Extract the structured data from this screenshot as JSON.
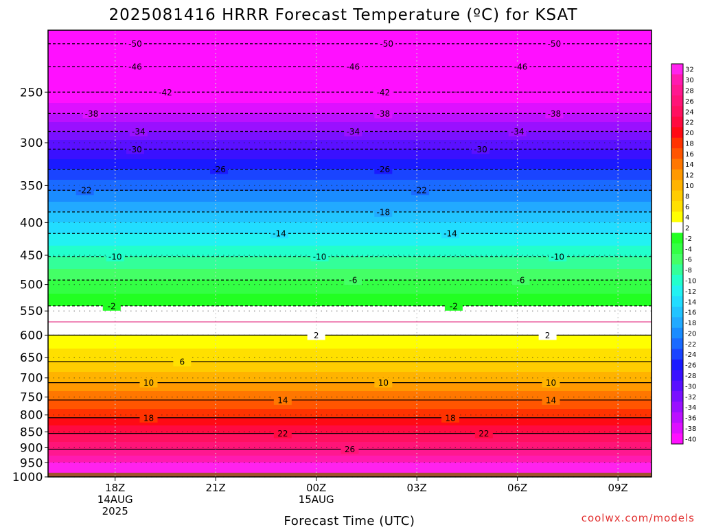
{
  "chart_data": {
    "type": "heatmap",
    "title": "2025081416 HRRR Forecast Temperature (ºC) for KSAT",
    "xlabel": "Forecast Time (UTC)",
    "ylabel": "",
    "credit": "coolwx.com/models",
    "x_ticks": [
      {
        "hour": 18,
        "lines": [
          "18Z",
          "14AUG",
          "2025"
        ]
      },
      {
        "hour": 21,
        "lines": [
          "21Z"
        ]
      },
      {
        "hour": 24,
        "lines": [
          "00Z",
          "15AUG"
        ]
      },
      {
        "hour": 27,
        "lines": [
          "03Z"
        ]
      },
      {
        "hour": 30,
        "lines": [
          "06Z"
        ]
      },
      {
        "hour": 33,
        "lines": [
          "09Z"
        ]
      }
    ],
    "xlim": [
      16,
      34
    ],
    "y_ticks": [
      250,
      300,
      350,
      400,
      450,
      500,
      550,
      600,
      650,
      700,
      750,
      800,
      850,
      900,
      950,
      1000
    ],
    "ylim": [
      200,
      1000
    ],
    "y_scale": "log-pressure",
    "ground_level": 985,
    "grid": true,
    "colorbar": {
      "levels": [
        32,
        30,
        28,
        26,
        24,
        22,
        20,
        18,
        16,
        14,
        12,
        10,
        8,
        6,
        4,
        2,
        -2,
        -4,
        -6,
        -8,
        -10,
        -12,
        -14,
        -16,
        -18,
        -20,
        -22,
        -24,
        -26,
        -28,
        -30,
        -32,
        -34,
        -36,
        -38,
        -40
      ],
      "colors": [
        "#ff22ee",
        "#ff1ab0",
        "#ff1890",
        "#ff1478",
        "#ff1060",
        "#ff0a40",
        "#ff0a14",
        "#ff3300",
        "#ff5500",
        "#ff7700",
        "#ff9900",
        "#ffb300",
        "#ffcc00",
        "#ffe000",
        "#ffff00",
        "#ffffff",
        "#22ff22",
        "#33ff44",
        "#44ff66",
        "#33ff99",
        "#22ffcc",
        "#22f2f2",
        "#22ddff",
        "#22c4ff",
        "#22aaff",
        "#1a8cff",
        "#1a6aff",
        "#1a44ff",
        "#1a1aff",
        "#3a10ff",
        "#5a10ff",
        "#7a10ff",
        "#9a10ff",
        "#bb10ff",
        "#dd10ff",
        "#ff10ff"
      ]
    },
    "contours": [
      {
        "value": -50,
        "pressure": 210,
        "dashed": true,
        "labels": [
          {
            "hour": 18.6
          },
          {
            "hour": 26.1
          },
          {
            "hour": 31.1
          }
        ]
      },
      {
        "value": -46,
        "pressure": 228,
        "dashed": true,
        "labels": [
          {
            "hour": 18.6
          },
          {
            "hour": 25.1
          },
          {
            "hour": 30.1
          }
        ]
      },
      {
        "value": -42,
        "pressure": 250,
        "dashed": true,
        "labels": [
          {
            "hour": 19.5
          },
          {
            "hour": 26.0
          }
        ]
      },
      {
        "value": -38,
        "pressure": 270,
        "dashed": true,
        "labels": [
          {
            "hour": 17.3
          },
          {
            "hour": 26.0
          },
          {
            "hour": 31.1
          }
        ]
      },
      {
        "value": -34,
        "pressure": 288,
        "dashed": true,
        "labels": [
          {
            "hour": 18.7
          },
          {
            "hour": 25.1
          },
          {
            "hour": 30.0
          }
        ]
      },
      {
        "value": -30,
        "pressure": 307,
        "dashed": true,
        "labels": [
          {
            "hour": 18.6
          },
          {
            "hour": 28.9
          }
        ]
      },
      {
        "value": -26,
        "pressure": 330,
        "dashed": true,
        "labels": [
          {
            "hour": 21.1
          },
          {
            "hour": 26.0
          }
        ]
      },
      {
        "value": -22,
        "pressure": 356,
        "dashed": true,
        "labels": [
          {
            "hour": 17.1
          },
          {
            "hour": 27.1
          }
        ]
      },
      {
        "value": -18,
        "pressure": 385,
        "dashed": true,
        "labels": [
          {
            "hour": 26.0
          }
        ]
      },
      {
        "value": -14,
        "pressure": 416,
        "dashed": true,
        "labels": [
          {
            "hour": 22.9
          },
          {
            "hour": 28.0
          }
        ]
      },
      {
        "value": -10,
        "pressure": 452,
        "dashed": true,
        "labels": [
          {
            "hour": 18.0
          },
          {
            "hour": 24.1
          },
          {
            "hour": 31.2
          }
        ]
      },
      {
        "value": -6,
        "pressure": 492,
        "dashed": true,
        "labels": [
          {
            "hour": 25.1
          },
          {
            "hour": 30.1
          }
        ]
      },
      {
        "value": -2,
        "pressure": 540,
        "dashed": true,
        "labels": [
          {
            "hour": 17.9
          },
          {
            "hour": 28.1
          }
        ]
      },
      {
        "value": 0,
        "pressure": 572,
        "dashed": false,
        "labels": []
      },
      {
        "value": 2,
        "pressure": 600,
        "dashed": false,
        "labels": [
          {
            "hour": 24.0
          },
          {
            "hour": 30.9
          }
        ]
      },
      {
        "value": 6,
        "pressure": 660,
        "dashed": false,
        "labels": [
          {
            "hour": 20.0
          }
        ]
      },
      {
        "value": 10,
        "pressure": 712,
        "dashed": false,
        "labels": [
          {
            "hour": 19.0
          },
          {
            "hour": 26.0
          },
          {
            "hour": 31.0
          }
        ]
      },
      {
        "value": 14,
        "pressure": 758,
        "dashed": false,
        "labels": [
          {
            "hour": 23.0
          },
          {
            "hour": 31.0
          }
        ]
      },
      {
        "value": 18,
        "pressure": 808,
        "dashed": false,
        "labels": [
          {
            "hour": 19.0
          },
          {
            "hour": 28.0
          }
        ]
      },
      {
        "value": 22,
        "pressure": 855,
        "dashed": false,
        "labels": [
          {
            "hour": 23.0
          },
          {
            "hour": 29.0
          }
        ]
      },
      {
        "value": 26,
        "pressure": 905,
        "dashed": false,
        "labels": [
          {
            "hour": 25.0
          }
        ]
      }
    ]
  }
}
